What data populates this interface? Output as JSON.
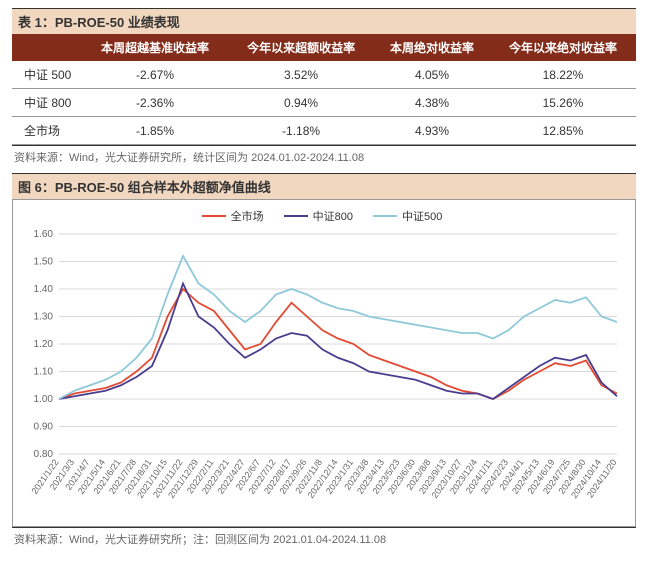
{
  "table": {
    "title": "表 1：PB-ROE-50 业绩表现",
    "headers": [
      "",
      "本周超越基准收益率",
      "今年以来超额收益率",
      "本周绝对收益率",
      "今年以来绝对收益率"
    ],
    "rows": [
      [
        "中证 500",
        "-2.67%",
        "3.52%",
        "4.05%",
        "18.22%"
      ],
      [
        "中证 800",
        "-2.36%",
        "0.94%",
        "4.38%",
        "15.26%"
      ],
      [
        "全市场",
        "-1.85%",
        "-1.18%",
        "4.93%",
        "12.85%"
      ]
    ],
    "source": "资料来源：Wind，光大证券研究所，统计区间为 2024.01.02-2024.11.08"
  },
  "chart": {
    "title": "图 6：PB-ROE-50 组合样本外超额净值曲线",
    "source": "资料来源：Wind，光大证券研究所；注：回测区间为 2021.01.04-2024.11.08",
    "ylim": [
      0.8,
      1.6
    ],
    "ytick_step": 0.1,
    "grid_color": "#d9d9d9",
    "background_color": "#ffffff",
    "label_fontsize": 10,
    "xticks": [
      "2021/1/22",
      "2021/3/3",
      "2021/4/7",
      "2021/5/14",
      "2021/6/21",
      "2021/7/28",
      "2021/8/31",
      "2021/10/15",
      "2021/11/22",
      "2021/12/29",
      "2022/2/11",
      "2022/3/21",
      "2022/4/27",
      "2022/6/7",
      "2022/7/12",
      "2022/8/17",
      "2022/9/26",
      "2022/11/8",
      "2022/12/14",
      "2023/1/31",
      "2023/3/8",
      "2023/4/13",
      "2023/5/23",
      "2023/6/30",
      "2023/8/8",
      "2023/9/13",
      "2023/10/27",
      "2023/12/4",
      "2024/1/11",
      "2024/2/23",
      "2024/4/1",
      "2024/5/13",
      "2024/6/19",
      "2024/7/25",
      "2024/8/30",
      "2024/10/14",
      "2024/11/20"
    ],
    "series": [
      {
        "name": "全市场",
        "color": "#e34a33",
        "line_width": 1.8,
        "data": [
          1.0,
          1.02,
          1.03,
          1.04,
          1.06,
          1.1,
          1.15,
          1.3,
          1.4,
          1.35,
          1.32,
          1.25,
          1.18,
          1.2,
          1.28,
          1.35,
          1.3,
          1.25,
          1.22,
          1.2,
          1.16,
          1.14,
          1.12,
          1.1,
          1.08,
          1.05,
          1.03,
          1.02,
          1.0,
          1.03,
          1.07,
          1.1,
          1.13,
          1.12,
          1.14,
          1.05,
          1.02
        ]
      },
      {
        "name": "中证800",
        "color": "#4a3d8f",
        "line_width": 1.8,
        "data": [
          1.0,
          1.01,
          1.02,
          1.03,
          1.05,
          1.08,
          1.12,
          1.25,
          1.42,
          1.3,
          1.26,
          1.2,
          1.15,
          1.18,
          1.22,
          1.24,
          1.23,
          1.18,
          1.15,
          1.13,
          1.1,
          1.09,
          1.08,
          1.07,
          1.05,
          1.03,
          1.02,
          1.02,
          1.0,
          1.04,
          1.08,
          1.12,
          1.15,
          1.14,
          1.16,
          1.06,
          1.01
        ]
      },
      {
        "name": "中证500",
        "color": "#8fc9d9",
        "line_width": 1.8,
        "data": [
          1.0,
          1.03,
          1.05,
          1.07,
          1.1,
          1.15,
          1.22,
          1.38,
          1.52,
          1.42,
          1.38,
          1.32,
          1.28,
          1.32,
          1.38,
          1.4,
          1.38,
          1.35,
          1.33,
          1.32,
          1.3,
          1.29,
          1.28,
          1.27,
          1.26,
          1.25,
          1.24,
          1.24,
          1.22,
          1.25,
          1.3,
          1.33,
          1.36,
          1.35,
          1.37,
          1.3,
          1.28
        ]
      }
    ]
  }
}
